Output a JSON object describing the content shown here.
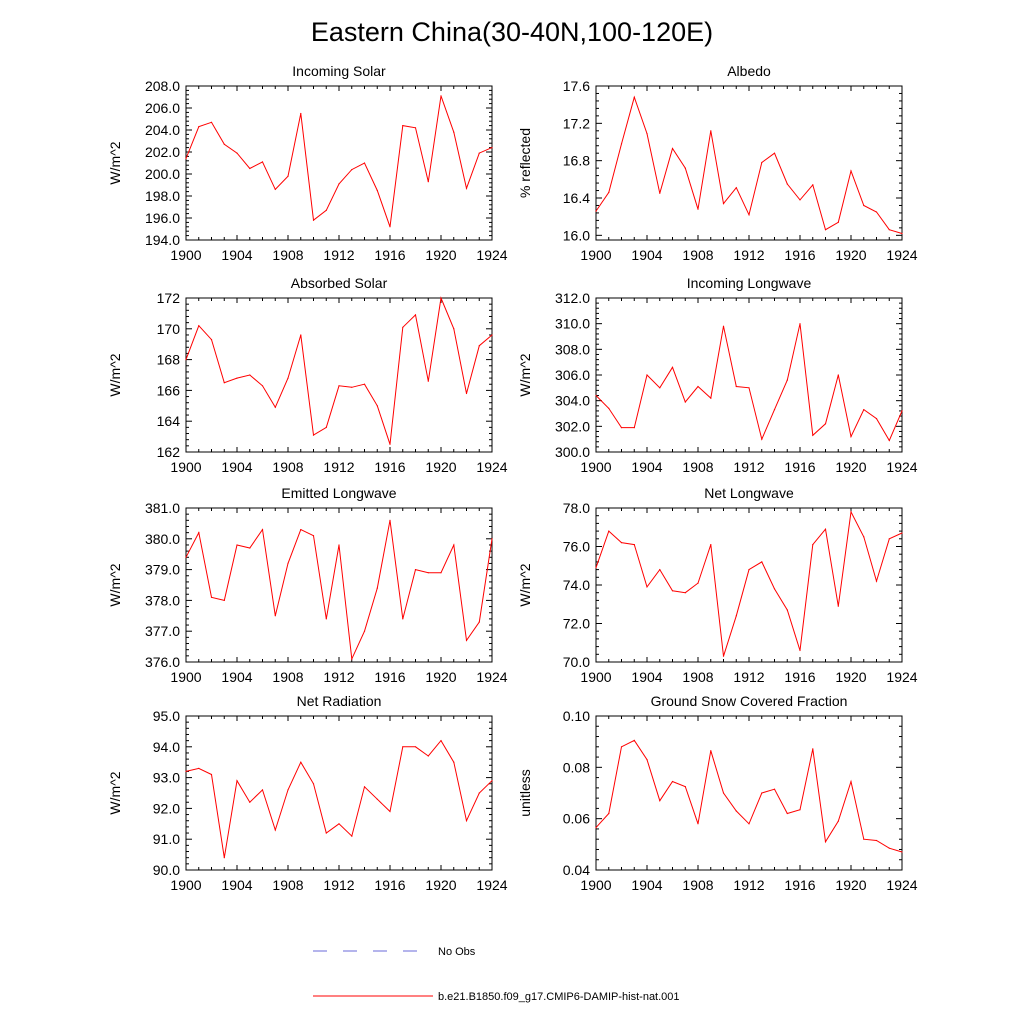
{
  "figure": {
    "title": "Eastern China(30-40N,100-120E)",
    "series_color": "#ff0000",
    "obs_color": "#6a6ad8",
    "legend": [
      {
        "label": "No Obs",
        "style": "dashed",
        "color": "#6a6ad8"
      },
      {
        "label": "b.e21.B1850.f09_g17.CMIP6-DAMIP-hist-nat.001",
        "style": "solid",
        "color": "#ff0000"
      }
    ]
  },
  "chart_data": [
    {
      "type": "line",
      "title": "Incoming Solar",
      "ylabel": "W/m^2",
      "xlim": [
        1900,
        1924
      ],
      "ylim": [
        194,
        208
      ],
      "xticks": [
        1900,
        1904,
        1908,
        1912,
        1916,
        1920,
        1924
      ],
      "yticks": [
        "194.0",
        "196.0",
        "198.0",
        "200.0",
        "202.0",
        "204.0",
        "206.0",
        "208.0"
      ],
      "x": [
        1900,
        1901,
        1902,
        1903,
        1904,
        1905,
        1906,
        1907,
        1908,
        1909,
        1910,
        1911,
        1912,
        1913,
        1914,
        1915,
        1916,
        1917,
        1918,
        1919,
        1920,
        1921,
        1922,
        1923,
        1924
      ],
      "series": [
        {
          "name": "b.e21.B1850.f09_g17.CMIP6-DAMIP-hist-nat.001",
          "values": [
            201.4,
            204.3,
            204.7,
            202.7,
            201.9,
            200.5,
            201.1,
            198.6,
            199.8,
            205.5,
            195.8,
            196.7,
            199.1,
            200.4,
            201.0,
            198.5,
            195.2,
            204.4,
            204.2,
            199.3,
            207.1,
            203.8,
            198.7,
            201.9,
            202.4
          ]
        }
      ]
    },
    {
      "type": "line",
      "title": "Albedo",
      "ylabel": "% reflected",
      "xlim": [
        1900,
        1924
      ],
      "ylim": [
        15.95,
        17.6
      ],
      "xticks": [
        1900,
        1904,
        1908,
        1912,
        1916,
        1920,
        1924
      ],
      "yticks": [
        "16.0",
        "16.4",
        "16.8",
        "17.2",
        "17.6"
      ],
      "x": [
        1900,
        1901,
        1902,
        1903,
        1904,
        1905,
        1906,
        1907,
        1908,
        1909,
        1910,
        1911,
        1912,
        1913,
        1914,
        1915,
        1916,
        1917,
        1918,
        1919,
        1920,
        1921,
        1922,
        1923,
        1924
      ],
      "series": [
        {
          "name": "b.e21.B1850.f09_g17.CMIP6-DAMIP-hist-nat.001",
          "values": [
            16.26,
            16.46,
            16.98,
            17.48,
            17.09,
            16.45,
            16.93,
            16.72,
            16.28,
            17.12,
            16.34,
            16.51,
            16.22,
            16.78,
            16.88,
            16.55,
            16.38,
            16.54,
            16.06,
            16.14,
            16.69,
            16.32,
            16.25,
            16.06,
            16.02
          ]
        }
      ]
    },
    {
      "type": "line",
      "title": "Absorbed Solar",
      "ylabel": "W/m^2",
      "xlim": [
        1900,
        1924
      ],
      "ylim": [
        162,
        172
      ],
      "xticks": [
        1900,
        1904,
        1908,
        1912,
        1916,
        1920,
        1924
      ],
      "yticks": [
        "162",
        "164",
        "166",
        "168",
        "170",
        "172"
      ],
      "x": [
        1900,
        1901,
        1902,
        1903,
        1904,
        1905,
        1906,
        1907,
        1908,
        1909,
        1910,
        1911,
        1912,
        1913,
        1914,
        1915,
        1916,
        1917,
        1918,
        1919,
        1920,
        1921,
        1922,
        1923,
        1924
      ],
      "series": [
        {
          "name": "b.e21.B1850.f09_g17.CMIP6-DAMIP-hist-nat.001",
          "values": [
            168.0,
            170.2,
            169.3,
            166.5,
            166.8,
            167.0,
            166.3,
            164.9,
            166.8,
            169.6,
            163.1,
            163.6,
            166.3,
            166.2,
            166.4,
            165.0,
            162.5,
            170.1,
            170.9,
            166.6,
            172.0,
            170.0,
            165.8,
            168.9,
            169.6
          ]
        }
      ]
    },
    {
      "type": "line",
      "title": "Incoming Longwave",
      "ylabel": "W/m^2",
      "xlim": [
        1900,
        1924
      ],
      "ylim": [
        300,
        312
      ],
      "xticks": [
        1900,
        1904,
        1908,
        1912,
        1916,
        1920,
        1924
      ],
      "yticks": [
        "300.0",
        "302.0",
        "304.0",
        "306.0",
        "308.0",
        "310.0",
        "312.0"
      ],
      "x": [
        1900,
        1901,
        1902,
        1903,
        1904,
        1905,
        1906,
        1907,
        1908,
        1909,
        1910,
        1911,
        1912,
        1913,
        1914,
        1915,
        1916,
        1917,
        1918,
        1919,
        1920,
        1921,
        1922,
        1923,
        1924
      ],
      "series": [
        {
          "name": "b.e21.B1850.f09_g17.CMIP6-DAMIP-hist-nat.001",
          "values": [
            304.4,
            303.4,
            301.9,
            301.9,
            306.0,
            305.0,
            306.6,
            303.9,
            305.1,
            304.2,
            309.8,
            305.1,
            305.0,
            301.0,
            303.3,
            305.6,
            310.0,
            301.3,
            302.2,
            306.0,
            301.2,
            303.3,
            302.6,
            300.9,
            303.2
          ]
        }
      ]
    },
    {
      "type": "line",
      "title": "Emitted Longwave",
      "ylabel": "W/m^2",
      "xlim": [
        1900,
        1924
      ],
      "ylim": [
        376,
        381
      ],
      "xticks": [
        1900,
        1904,
        1908,
        1912,
        1916,
        1920,
        1924
      ],
      "yticks": [
        "376.0",
        "377.0",
        "378.0",
        "379.0",
        "380.0",
        "381.0"
      ],
      "x": [
        1900,
        1901,
        1902,
        1903,
        1904,
        1905,
        1906,
        1907,
        1908,
        1909,
        1910,
        1911,
        1912,
        1913,
        1914,
        1915,
        1916,
        1917,
        1918,
        1919,
        1920,
        1921,
        1922,
        1923,
        1924
      ],
      "series": [
        {
          "name": "b.e21.B1850.f09_g17.CMIP6-DAMIP-hist-nat.001",
          "values": [
            379.4,
            380.2,
            378.1,
            378.0,
            379.8,
            379.7,
            380.3,
            377.5,
            379.2,
            380.3,
            380.1,
            377.4,
            379.8,
            376.1,
            377.0,
            378.4,
            380.6,
            377.4,
            379.0,
            378.9,
            378.9,
            379.8,
            376.7,
            377.3,
            380.0
          ]
        }
      ]
    },
    {
      "type": "line",
      "title": "Net Longwave",
      "ylabel": "W/m^2",
      "xlim": [
        1900,
        1924
      ],
      "ylim": [
        70,
        78
      ],
      "xticks": [
        1900,
        1904,
        1908,
        1912,
        1916,
        1920,
        1924
      ],
      "yticks": [
        "70.0",
        "72.0",
        "74.0",
        "76.0",
        "78.0"
      ],
      "x": [
        1900,
        1901,
        1902,
        1903,
        1904,
        1905,
        1906,
        1907,
        1908,
        1909,
        1910,
        1911,
        1912,
        1913,
        1914,
        1915,
        1916,
        1917,
        1918,
        1919,
        1920,
        1921,
        1922,
        1923,
        1924
      ],
      "series": [
        {
          "name": "b.e21.B1850.f09_g17.CMIP6-DAMIP-hist-nat.001",
          "values": [
            74.9,
            76.8,
            76.2,
            76.1,
            73.9,
            74.8,
            73.7,
            73.6,
            74.1,
            76.1,
            70.3,
            72.4,
            74.8,
            75.2,
            73.8,
            72.7,
            70.6,
            76.1,
            76.9,
            72.9,
            77.8,
            76.5,
            74.2,
            76.4,
            76.7
          ]
        }
      ]
    },
    {
      "type": "line",
      "title": "Net Radiation",
      "ylabel": "W/m^2",
      "xlim": [
        1900,
        1924
      ],
      "ylim": [
        90,
        95
      ],
      "xticks": [
        1900,
        1904,
        1908,
        1912,
        1916,
        1920,
        1924
      ],
      "yticks": [
        "90.0",
        "91.0",
        "92.0",
        "93.0",
        "94.0",
        "95.0"
      ],
      "x": [
        1900,
        1901,
        1902,
        1903,
        1904,
        1905,
        1906,
        1907,
        1908,
        1909,
        1910,
        1911,
        1912,
        1913,
        1914,
        1915,
        1916,
        1917,
        1918,
        1919,
        1920,
        1921,
        1922,
        1923,
        1924
      ],
      "series": [
        {
          "name": "b.e21.B1850.f09_g17.CMIP6-DAMIP-hist-nat.001",
          "values": [
            93.2,
            93.3,
            93.1,
            90.4,
            92.9,
            92.2,
            92.6,
            91.3,
            92.6,
            93.5,
            92.8,
            91.2,
            91.5,
            91.1,
            92.7,
            92.3,
            91.9,
            94.0,
            94.0,
            93.7,
            94.2,
            93.5,
            91.6,
            92.5,
            92.9
          ]
        }
      ]
    },
    {
      "type": "line",
      "title": "Ground Snow Covered Fraction",
      "ylabel": "unitless",
      "xlim": [
        1900,
        1924
      ],
      "ylim": [
        0.04,
        0.1
      ],
      "xticks": [
        1900,
        1904,
        1908,
        1912,
        1916,
        1920,
        1924
      ],
      "yticks": [
        "0.04",
        "0.06",
        "0.08",
        "0.10"
      ],
      "x": [
        1900,
        1901,
        1902,
        1903,
        1904,
        1905,
        1906,
        1907,
        1908,
        1909,
        1910,
        1911,
        1912,
        1913,
        1914,
        1915,
        1916,
        1917,
        1918,
        1919,
        1920,
        1921,
        1922,
        1923,
        1924
      ],
      "series": [
        {
          "name": "b.e21.B1850.f09_g17.CMIP6-DAMIP-hist-nat.001",
          "values": [
            0.0565,
            0.062,
            0.088,
            0.0905,
            0.083,
            0.067,
            0.0745,
            0.0725,
            0.058,
            0.0865,
            0.07,
            0.063,
            0.058,
            0.07,
            0.0715,
            0.062,
            0.0635,
            0.0872,
            0.051,
            0.059,
            0.0745,
            0.052,
            0.0515,
            0.0485,
            0.047
          ]
        }
      ]
    }
  ]
}
